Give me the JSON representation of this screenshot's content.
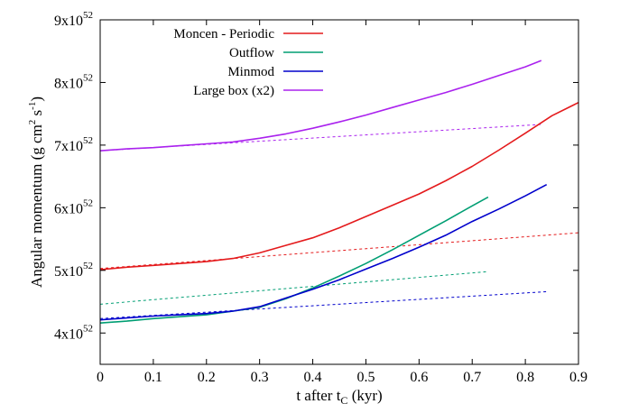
{
  "chart_data": {
    "type": "line",
    "xlabel": "t after t",
    "xlabel_sub": "C",
    "xlabel_unit": " (kyr)",
    "ylabel_parts": {
      "main": "Angular momentum (g cm",
      "sup1": "2",
      "mid": " s",
      "sup2": "-1",
      "end": ")"
    },
    "xlim": [
      0,
      0.9
    ],
    "ylim": [
      3.5,
      9.0
    ],
    "xticks": [
      0,
      0.1,
      0.2,
      0.3,
      0.4,
      0.5,
      0.6,
      0.7,
      0.8,
      0.9
    ],
    "xtick_labels": [
      "0",
      "0.1",
      "0.2",
      "0.3",
      "0.4",
      "0.5",
      "0.6",
      "0.7",
      "0.8",
      "0.9"
    ],
    "yticks": [
      4,
      5,
      6,
      7,
      8,
      9
    ],
    "ytick_mantissa": [
      "4x10",
      "5x10",
      "6x10",
      "7x10",
      "8x10",
      "9x10"
    ],
    "ytick_exponent": "52",
    "grid": false,
    "legend_position": "top-left",
    "series": [
      {
        "name": "Moncen - Periodic",
        "color": "#e41a1c",
        "x": [
          0,
          0.05,
          0.1,
          0.15,
          0.2,
          0.25,
          0.3,
          0.35,
          0.4,
          0.45,
          0.5,
          0.55,
          0.6,
          0.65,
          0.7,
          0.75,
          0.8,
          0.85,
          0.9
        ],
        "y": [
          5.01,
          5.05,
          5.08,
          5.11,
          5.14,
          5.19,
          5.28,
          5.4,
          5.52,
          5.68,
          5.86,
          6.04,
          6.22,
          6.43,
          6.66,
          6.92,
          7.19,
          7.47,
          7.68
        ],
        "fit_x": [
          0,
          0.9
        ],
        "fit_y": [
          5.03,
          5.6
        ]
      },
      {
        "name": "Outflow",
        "color": "#009e73",
        "x": [
          0,
          0.05,
          0.1,
          0.15,
          0.2,
          0.25,
          0.3,
          0.35,
          0.4,
          0.45,
          0.5,
          0.55,
          0.6,
          0.65,
          0.7,
          0.73
        ],
        "y": [
          4.16,
          4.19,
          4.23,
          4.26,
          4.29,
          4.35,
          4.41,
          4.55,
          4.72,
          4.91,
          5.11,
          5.33,
          5.56,
          5.79,
          6.03,
          6.17
        ],
        "fit_x": [
          0,
          0.73
        ],
        "fit_y": [
          4.46,
          4.98
        ]
      },
      {
        "name": "Minmod",
        "color": "#0000cc",
        "x": [
          0,
          0.05,
          0.1,
          0.15,
          0.2,
          0.25,
          0.3,
          0.35,
          0.4,
          0.45,
          0.5,
          0.55,
          0.6,
          0.65,
          0.7,
          0.75,
          0.8,
          0.84
        ],
        "y": [
          4.21,
          4.24,
          4.27,
          4.29,
          4.31,
          4.35,
          4.42,
          4.56,
          4.7,
          4.85,
          5.02,
          5.19,
          5.37,
          5.56,
          5.78,
          5.98,
          6.19,
          6.37
        ],
        "fit_x": [
          0,
          0.84
        ],
        "fit_y": [
          4.23,
          4.66
        ]
      },
      {
        "name": "Large box (x2)",
        "color": "#aa22ee",
        "x": [
          0,
          0.05,
          0.1,
          0.15,
          0.2,
          0.25,
          0.3,
          0.35,
          0.4,
          0.45,
          0.5,
          0.55,
          0.6,
          0.65,
          0.7,
          0.75,
          0.8,
          0.83
        ],
        "y": [
          6.91,
          6.94,
          6.96,
          6.99,
          7.02,
          7.05,
          7.11,
          7.18,
          7.27,
          7.37,
          7.48,
          7.6,
          7.72,
          7.84,
          7.97,
          8.11,
          8.25,
          8.35
        ],
        "fit_x": [
          0,
          0.83
        ],
        "fit_y": [
          6.91,
          7.33
        ]
      }
    ]
  }
}
